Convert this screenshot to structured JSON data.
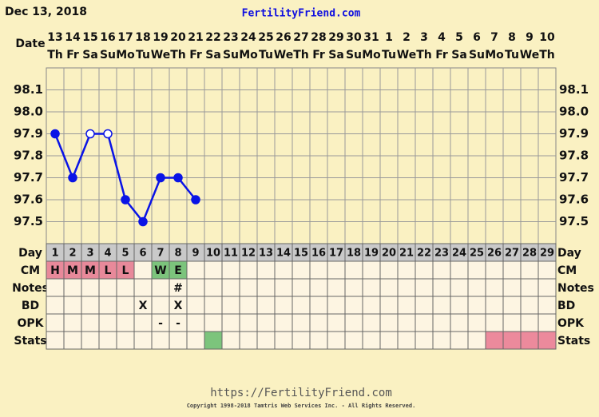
{
  "header": {
    "date": "Dec 13, 2018",
    "site": "FertilityFriend.com"
  },
  "chart_data": {
    "type": "line",
    "row_labels": {
      "date": "Date",
      "day": "Day",
      "cm": "CM",
      "notes": "Notes",
      "bd": "BD",
      "opk": "OPK",
      "stats": "Stats"
    },
    "dates": [
      "13",
      "14",
      "15",
      "16",
      "17",
      "18",
      "19",
      "20",
      "21",
      "22",
      "23",
      "24",
      "25",
      "26",
      "27",
      "28",
      "29",
      "30",
      "31",
      "1",
      "2",
      "3",
      "4",
      "5",
      "6",
      "7",
      "8",
      "9",
      "10"
    ],
    "weekdays": [
      "Th",
      "Fr",
      "Sa",
      "Su",
      "Mo",
      "Tu",
      "We",
      "Th",
      "Fr",
      "Sa",
      "Su",
      "Mo",
      "Tu",
      "We",
      "Th",
      "Fr",
      "Sa",
      "Su",
      "Mo",
      "Tu",
      "We",
      "Th",
      "Fr",
      "Sa",
      "Su",
      "Mo",
      "Tu",
      "We",
      "Th"
    ],
    "x": [
      1,
      2,
      3,
      4,
      5,
      6,
      7,
      8,
      9,
      10,
      11,
      12,
      13,
      14,
      15,
      16,
      17,
      18,
      19,
      20,
      21,
      22,
      23,
      24,
      25,
      26,
      27,
      28,
      29
    ],
    "series": [
      {
        "color": "#0a14e6",
        "values": [
          97.9,
          97.7,
          97.9,
          97.9,
          97.6,
          97.5,
          97.7,
          97.7,
          97.6,
          null,
          null,
          null,
          null,
          null,
          null,
          null,
          null,
          null,
          null,
          null,
          null,
          null,
          null,
          null,
          null,
          null,
          null,
          null,
          null
        ],
        "markers": [
          "filled",
          "filled",
          "open",
          "open",
          "filled",
          "filled",
          "filled",
          "filled",
          "filled",
          null,
          null,
          null,
          null,
          null,
          null,
          null,
          null,
          null,
          null,
          null,
          null,
          null,
          null,
          null,
          null,
          null,
          null,
          null,
          null
        ]
      }
    ],
    "ylim": [
      97.4,
      98.2
    ],
    "yticks": [
      97.5,
      97.6,
      97.7,
      97.8,
      97.9,
      {
        "value": 98,
        "label": "98.0"
      },
      98.1
    ],
    "cm": [
      "H",
      "M",
      "M",
      "L",
      "L",
      null,
      "W",
      "E",
      null,
      null,
      null,
      null,
      null,
      null,
      null,
      null,
      null,
      null,
      null,
      null,
      null,
      null,
      null,
      null,
      null,
      null,
      null,
      null,
      null
    ],
    "cm_colors": [
      "#e8899a",
      "#e8899a",
      "#e8899a",
      "#e8899a",
      "#e8899a",
      null,
      "#7cc47c",
      "#7cc47c",
      null,
      null,
      null,
      null,
      null,
      null,
      null,
      null,
      null,
      null,
      null,
      null,
      null,
      null,
      null,
      null,
      null,
      null,
      null,
      null,
      null
    ],
    "notes": [
      null,
      null,
      null,
      null,
      null,
      null,
      null,
      "#",
      null,
      null,
      null,
      null,
      null,
      null,
      null,
      null,
      null,
      null,
      null,
      null,
      null,
      null,
      null,
      null,
      null,
      null,
      null,
      null,
      null
    ],
    "bd": [
      null,
      null,
      null,
      null,
      null,
      "X",
      null,
      "X",
      null,
      null,
      null,
      null,
      null,
      null,
      null,
      null,
      null,
      null,
      null,
      null,
      null,
      null,
      null,
      null,
      null,
      null,
      null,
      null,
      null
    ],
    "opk": [
      null,
      null,
      null,
      null,
      null,
      null,
      "-",
      "-",
      null,
      null,
      null,
      null,
      null,
      null,
      null,
      null,
      null,
      null,
      null,
      null,
      null,
      null,
      null,
      null,
      null,
      null,
      null,
      null,
      null
    ],
    "stats_colors": [
      null,
      null,
      null,
      null,
      null,
      null,
      null,
      null,
      null,
      "#7cc47c",
      null,
      null,
      null,
      null,
      null,
      null,
      null,
      null,
      null,
      null,
      null,
      null,
      null,
      null,
      null,
      "#ec8a9c",
      "#ec8a9c",
      "#ec8a9c",
      "#ec8a9c"
    ]
  },
  "footer": {
    "url": "https://FertilityFriend.com",
    "copyright": "Copyright 1998-2018 Tamtris Web Services Inc. - All Rights Reserved."
  }
}
